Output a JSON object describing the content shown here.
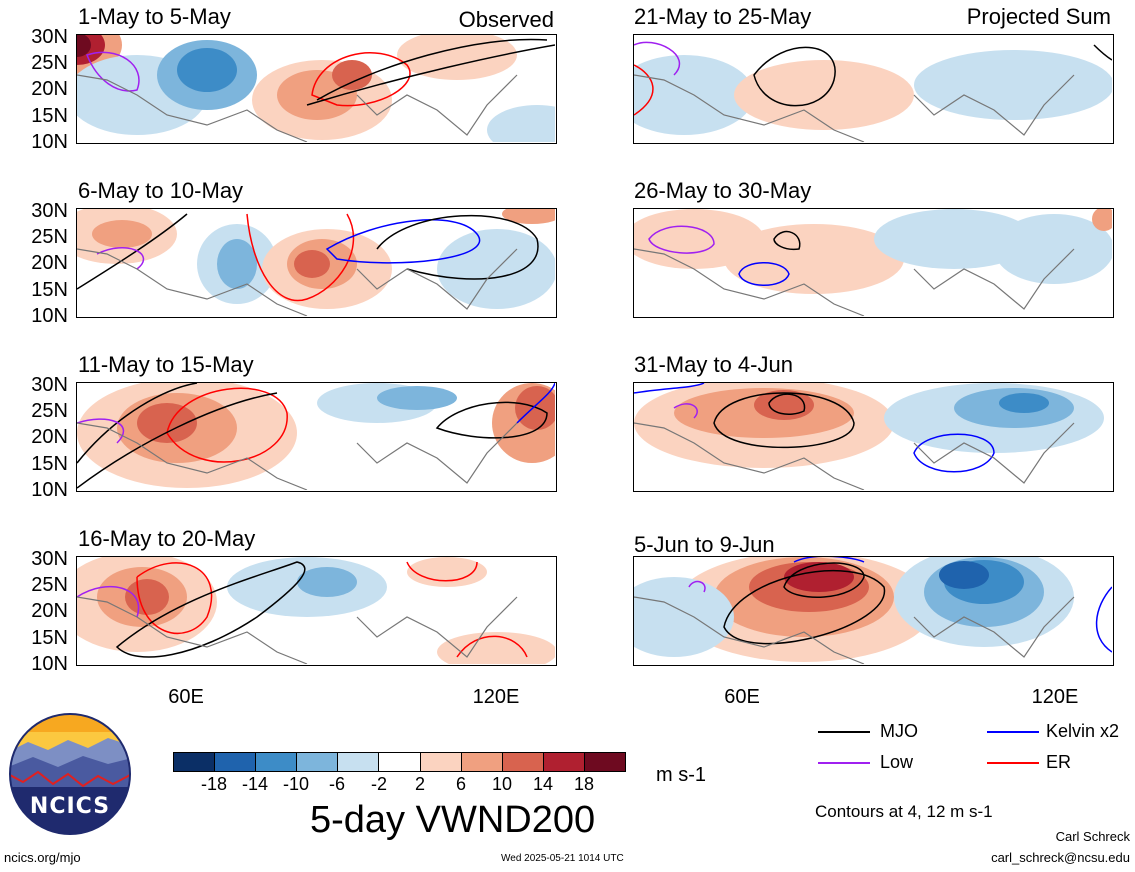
{
  "panels": [
    {
      "title": "1-May to 5-May",
      "tag": "Observed"
    },
    {
      "title": "6-May to 10-May",
      "tag": ""
    },
    {
      "title": "11-May to 15-May",
      "tag": ""
    },
    {
      "title": "16-May to 20-May",
      "tag": ""
    },
    {
      "title": "21-May to 25-May",
      "tag": "Projected Sum"
    },
    {
      "title": "26-May to 30-May",
      "tag": ""
    },
    {
      "title": "31-May to 4-Jun",
      "tag": ""
    },
    {
      "title": "5-Jun to 9-Jun",
      "tag": ""
    }
  ],
  "axes": {
    "lat_labels": [
      "30N",
      "25N",
      "20N",
      "15N",
      "10N"
    ],
    "lon_labels": [
      "60E",
      "120E"
    ]
  },
  "colorbar": {
    "labels": [
      "-18",
      "-14",
      "-10",
      "-6",
      "-2",
      "2",
      "6",
      "10",
      "14",
      "18"
    ],
    "colors": [
      "#0b2f66",
      "#1f63ad",
      "#3d8cc7",
      "#7db5dc",
      "#c7e0f0",
      "#ffffff",
      "#fbd3c0",
      "#f0a080",
      "#d8634f",
      "#b02030",
      "#6e0a20"
    ],
    "unit": "m s-1"
  },
  "title": "5-day VWND200",
  "legend": {
    "items": [
      {
        "name": "MJO",
        "color": "#000000"
      },
      {
        "name": "Kelvin x2",
        "color": "#0000ff"
      },
      {
        "name": "Low",
        "color": "#a020f0"
      },
      {
        "name": "ER",
        "color": "#ff0000"
      }
    ],
    "note": "Contours at 4, 12 m s-1"
  },
  "logo": {
    "text": "NCICS"
  },
  "footer": {
    "url": "ncics.org/mjo",
    "timestamp": "Wed 2025-05-21 1014 UTC",
    "author": "Carl Schreck",
    "email": "carl_schreck@ncsu.edu"
  }
}
